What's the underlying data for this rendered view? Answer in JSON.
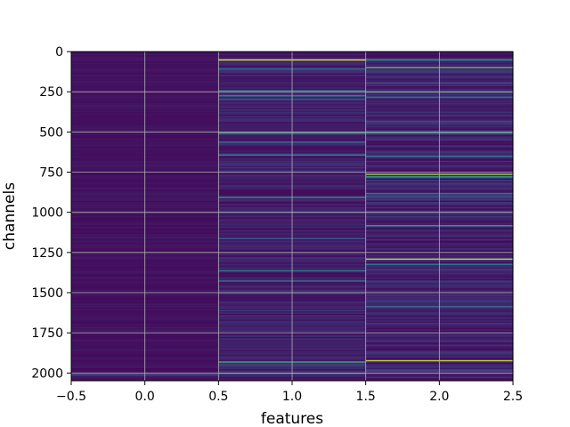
{
  "chart_data": {
    "type": "heatmap",
    "title": "",
    "xlabel": "features",
    "ylabel": "channels",
    "xlim": [
      -0.5,
      2.5
    ],
    "ylim": [
      2048,
      0
    ],
    "y_inverted": true,
    "grid": true,
    "colormap": "viridis",
    "x_ticks": [
      -0.5,
      0.0,
      0.5,
      1.0,
      1.5,
      2.0,
      2.5
    ],
    "x_tick_labels": [
      "−0.5",
      "0.0",
      "0.5",
      "1.0",
      "1.5",
      "2.0",
      "2.5"
    ],
    "y_ticks": [
      0,
      250,
      500,
      750,
      1000,
      1250,
      1500,
      1750,
      2000
    ],
    "y_tick_labels": [
      "0",
      "250",
      "500",
      "750",
      "1000",
      "1250",
      "1500",
      "1750",
      "2000"
    ],
    "columns": [
      0,
      1,
      2
    ],
    "rows": 2048,
    "background_level": 0.03,
    "column_noise": [
      0.04,
      0.12,
      0.14
    ],
    "highlights": [
      {
        "column": 1,
        "row": 55,
        "value": 0.95
      },
      {
        "column": 1,
        "row": 105,
        "value": 0.35
      },
      {
        "column": 1,
        "row": 240,
        "value": 0.4
      },
      {
        "column": 1,
        "row": 275,
        "value": 0.45
      },
      {
        "column": 1,
        "row": 505,
        "value": 0.55
      },
      {
        "column": 1,
        "row": 565,
        "value": 0.35
      },
      {
        "column": 1,
        "row": 645,
        "value": 0.45
      },
      {
        "column": 1,
        "row": 905,
        "value": 0.5
      },
      {
        "column": 1,
        "row": 1160,
        "value": 0.3
      },
      {
        "column": 1,
        "row": 1365,
        "value": 0.4
      },
      {
        "column": 1,
        "row": 1425,
        "value": 0.35
      },
      {
        "column": 1,
        "row": 1930,
        "value": 0.6
      },
      {
        "column": 1,
        "row": 2000,
        "value": 0.3
      },
      {
        "column": 2,
        "row": 55,
        "value": 0.5
      },
      {
        "column": 2,
        "row": 100,
        "value": 0.7
      },
      {
        "column": 2,
        "row": 250,
        "value": 0.45
      },
      {
        "column": 2,
        "row": 280,
        "value": 0.35
      },
      {
        "column": 2,
        "row": 505,
        "value": 0.5
      },
      {
        "column": 2,
        "row": 650,
        "value": 0.4
      },
      {
        "column": 2,
        "row": 760,
        "value": 0.85
      },
      {
        "column": 2,
        "row": 780,
        "value": 0.55
      },
      {
        "column": 2,
        "row": 880,
        "value": 0.4
      },
      {
        "column": 2,
        "row": 1080,
        "value": 0.55
      },
      {
        "column": 2,
        "row": 1295,
        "value": 0.85
      },
      {
        "column": 2,
        "row": 1320,
        "value": 0.45
      },
      {
        "column": 2,
        "row": 1590,
        "value": 0.35
      },
      {
        "column": 2,
        "row": 1925,
        "value": 0.9
      },
      {
        "column": 0,
        "row": 2010,
        "value": 0.25
      }
    ]
  }
}
